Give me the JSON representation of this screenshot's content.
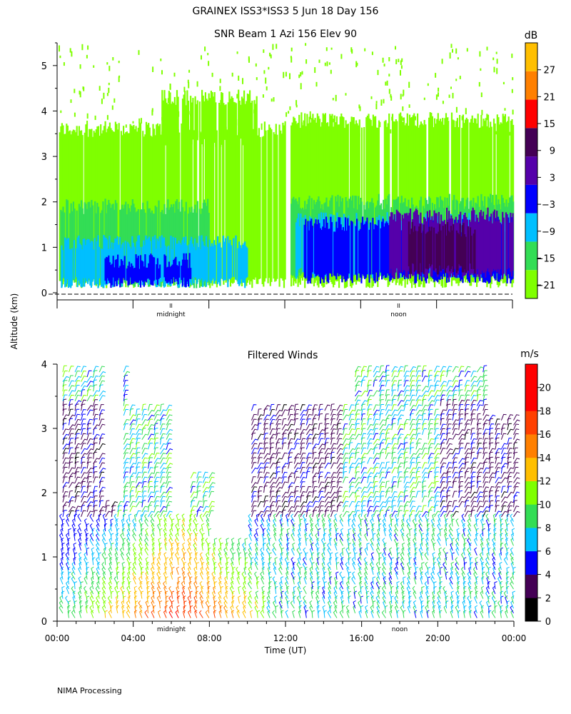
{
  "header": {
    "main_title": "GRAINEX ISS3*ISS3   5 Jun 18 Day 156",
    "ylabel": "Altitude (km)",
    "footer": "NIMA Processing"
  },
  "chart_data": [
    {
      "type": "heatmap",
      "title": "SNR Beam 1 Azi 156 Elev 90",
      "xlabel": "",
      "ylabel": "Altitude (km)",
      "ylim": [
        0,
        5.5
      ],
      "yticks": [
        "0",
        "1",
        "2",
        "3",
        "4",
        "5"
      ],
      "xlim": [
        0,
        24
      ],
      "x_annotations": [
        {
          "x": 6,
          "label": "midnight"
        },
        {
          "x": 18,
          "label": "noon"
        }
      ],
      "colorbar": {
        "unit": "dB",
        "min": -24,
        "max": 33,
        "ticks": [
          "27",
          "21",
          "15",
          "9",
          "3",
          "−3",
          "−9",
          "−15",
          "−21"
        ],
        "colors": [
          "#7fff00",
          "#33dd55",
          "#00bfff",
          "#0000ff",
          "#5500aa",
          "#440055",
          "#ff0000",
          "#ff8000",
          "#ffbf00"
        ]
      },
      "regions": [
        {
          "t0": 0.1,
          "t1": 12.0,
          "h0": 0.1,
          "h1": 3.6,
          "db": -19
        },
        {
          "t0": 12.3,
          "t1": 24.0,
          "h0": 0.1,
          "h1": 3.8,
          "db": -19
        },
        {
          "t0": 5.5,
          "t1": 10.5,
          "h0": 3.2,
          "h1": 4.3,
          "db": -19
        },
        {
          "t0": 0.1,
          "t1": 8.0,
          "h0": 0.1,
          "h1": 1.9,
          "db": -16
        },
        {
          "t0": 12.3,
          "t1": 24.0,
          "h0": 0.3,
          "h1": 2.0,
          "db": -16
        },
        {
          "t0": 0.2,
          "t1": 10.0,
          "h0": 0.1,
          "h1": 1.1,
          "db": -10
        },
        {
          "t0": 12.5,
          "t1": 24.0,
          "h0": 0.3,
          "h1": 1.6,
          "db": -10
        },
        {
          "t0": 2.5,
          "t1": 7.0,
          "h0": 0.1,
          "h1": 0.7,
          "db": -4
        },
        {
          "t0": 13.0,
          "t1": 24.0,
          "h0": 0.2,
          "h1": 1.5,
          "db": -4
        },
        {
          "t0": 17.5,
          "t1": 24.0,
          "h0": 0.3,
          "h1": 1.7,
          "db": 6
        },
        {
          "t0": 18.5,
          "t1": 22.0,
          "h0": 0.4,
          "h1": 1.4,
          "db": 10
        }
      ]
    },
    {
      "type": "wind_barbs",
      "title": "Filtered Winds",
      "xlabel": "Time (UT)",
      "ylabel": "Altitude (km)",
      "ylim": [
        0,
        4
      ],
      "yticks": [
        "0",
        "1",
        "2",
        "3",
        "4"
      ],
      "xlim": [
        0,
        24
      ],
      "xticks": [
        "00:00",
        "04:00",
        "08:00",
        "12:00",
        "16:00",
        "20:00",
        "00:00"
      ],
      "x_annotations": [
        {
          "x": 6,
          "label": "midnight"
        },
        {
          "x": 18,
          "label": "noon"
        }
      ],
      "colorbar": {
        "unit": "m/s",
        "min": 0,
        "max": 22,
        "ticks": [
          "20",
          "18",
          "16",
          "14",
          "12",
          "10",
          "8",
          "6",
          "4",
          "2",
          "0"
        ],
        "colors": [
          "#000000",
          "#440055",
          "#0000ff",
          "#00bfff",
          "#33dd55",
          "#7fff00",
          "#ffbf00",
          "#ff8000",
          "#ff4000",
          "#ff0000",
          "#ff0000"
        ]
      }
    }
  ]
}
